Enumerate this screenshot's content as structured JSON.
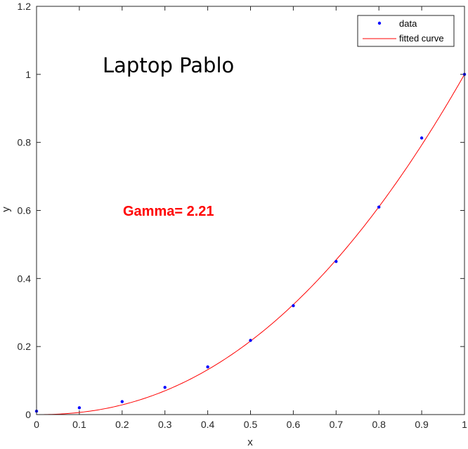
{
  "chart_data": {
    "type": "scatter",
    "title": "",
    "xlabel": "x",
    "ylabel": "y",
    "xlim": [
      0,
      1
    ],
    "ylim": [
      0,
      1.2
    ],
    "xticks": [
      0,
      0.1,
      0.2,
      0.3,
      0.4,
      0.5,
      0.6,
      0.7,
      0.8,
      0.9,
      1
    ],
    "yticks": [
      0,
      0.2,
      0.4,
      0.6,
      0.8,
      1,
      1.2
    ],
    "grid": false,
    "legend_position": "top-right",
    "series": [
      {
        "name": "data",
        "kind": "points",
        "color": "#0000ff",
        "x": [
          0,
          0.1,
          0.2,
          0.3,
          0.4,
          0.5,
          0.6,
          0.7,
          0.8,
          0.9,
          1
        ],
        "y": [
          0.01,
          0.02,
          0.038,
          0.08,
          0.14,
          0.218,
          0.32,
          0.45,
          0.61,
          0.813,
          1.0
        ]
      },
      {
        "name": "fitted curve",
        "kind": "line",
        "color": "#ff0000",
        "function": "y = x^2.21",
        "gamma": 2.21
      }
    ],
    "annotations": [
      {
        "id": "title_note",
        "text": "Laptop Pablo",
        "color": "#000000"
      },
      {
        "id": "gamma_note",
        "text": "Gamma= 2.21",
        "color": "#ff0000"
      }
    ]
  }
}
